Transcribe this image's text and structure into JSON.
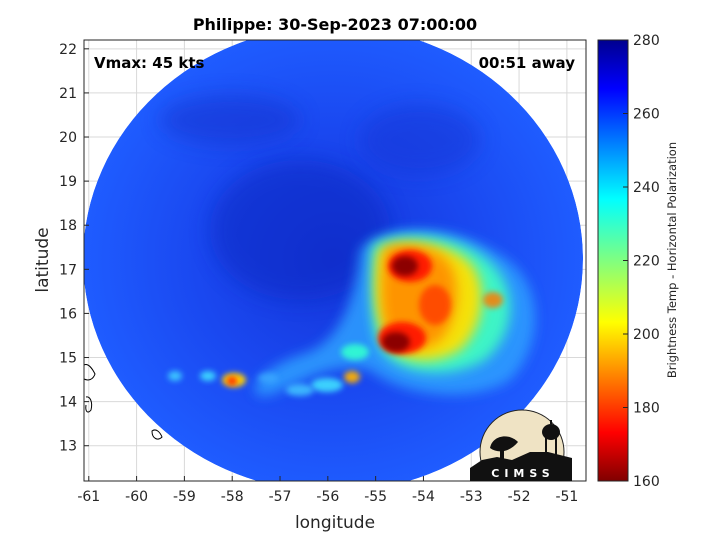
{
  "chart_data": {
    "type": "heatmap",
    "title": "Philippe: 30-Sep-2023 07:00:00",
    "xlabel": "longitude",
    "ylabel": "latitude",
    "xlim": [
      -61.1,
      -50.6
    ],
    "ylim": [
      12.2,
      22.2
    ],
    "x_ticks": [
      "-61",
      "-60",
      "-59",
      "-58",
      "-57",
      "-56",
      "-55",
      "-54",
      "-53",
      "-52",
      "-51"
    ],
    "y_ticks": [
      "13",
      "14",
      "15",
      "16",
      "17",
      "18",
      "19",
      "20",
      "21",
      "22"
    ],
    "grid": true,
    "colorbar": {
      "label": "Brightness Temp - Horizontal Polarization",
      "range": [
        160,
        280
      ],
      "ticks": [
        "160",
        "180",
        "200",
        "220",
        "240",
        "260",
        "280"
      ],
      "colormap": "jet",
      "placement": "right"
    },
    "swath": {
      "center_lon": -55.8,
      "center_lat": 17.2,
      "background_value": 262
    },
    "features": [
      {
        "name": "deep convection north",
        "lon": -54.4,
        "lat": 17.2,
        "value": 168
      },
      {
        "name": "deep convection south",
        "lon": -54.3,
        "lat": 15.3,
        "value": 165
      },
      {
        "name": "rain band",
        "lon": -53.8,
        "lat": 16.2,
        "value": 195
      },
      {
        "name": "outer rain",
        "lon": -52.7,
        "lat": 16.3,
        "value": 215
      },
      {
        "name": "small cell",
        "lon": -58.0,
        "lat": 14.4,
        "value": 185
      },
      {
        "name": "small cell",
        "lon": -55.8,
        "lat": 14.5,
        "value": 205
      }
    ],
    "annotations": {
      "vmax": "Vmax: 45 kts",
      "time_offset": "00:51 away"
    },
    "logo_text": "CIMSS"
  }
}
